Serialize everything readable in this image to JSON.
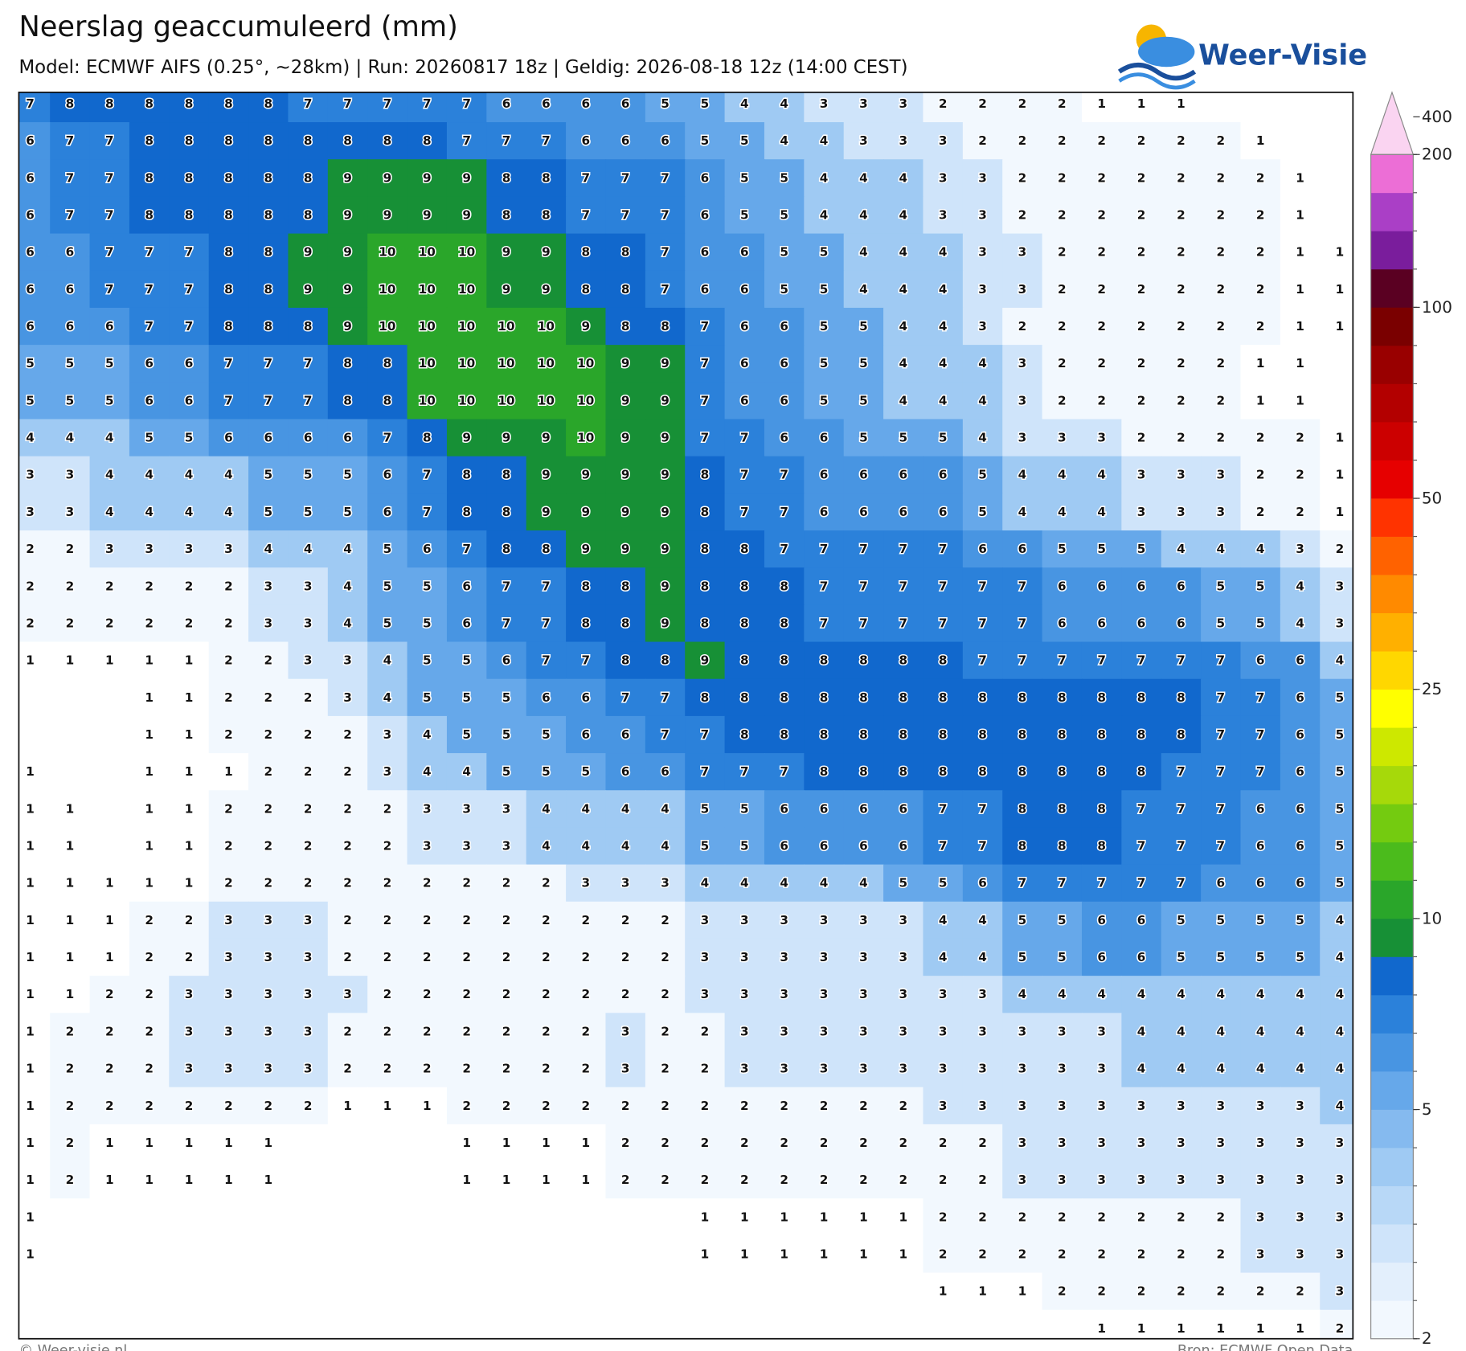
{
  "header": {
    "title": "Neerslag geaccumuleerd (mm)",
    "subtitle": "Model: ECMWF AIFS (0.25°, ~28km)  |  Run: 20260817 18z  |  Geldig: 2026-08-18 12z (14:00 CEST)"
  },
  "logo": {
    "text": "Weer-Visie"
  },
  "map": {
    "grid": [
      [
        7,
        8,
        8,
        8,
        8,
        8,
        8,
        7,
        7,
        7,
        7,
        7,
        6,
        6,
        6,
        6,
        5,
        5,
        4,
        4,
        3,
        3,
        3,
        2,
        2,
        2,
        2,
        1,
        1,
        1,
        null,
        null,
        null,
        null
      ],
      [
        6,
        7,
        7,
        8,
        8,
        8,
        8,
        8,
        8,
        8,
        8,
        7,
        7,
        7,
        6,
        6,
        6,
        5,
        5,
        4,
        4,
        3,
        3,
        3,
        2,
        2,
        2,
        2,
        2,
        2,
        2,
        1,
        null,
        null
      ],
      [
        6,
        7,
        7,
        8,
        8,
        8,
        8,
        8,
        9,
        9,
        9,
        9,
        8,
        8,
        7,
        7,
        7,
        6,
        5,
        5,
        4,
        4,
        4,
        3,
        3,
        2,
        2,
        2,
        2,
        2,
        2,
        2,
        1,
        null
      ],
      [
        6,
        7,
        7,
        8,
        8,
        8,
        8,
        8,
        9,
        9,
        9,
        9,
        8,
        8,
        7,
        7,
        7,
        6,
        5,
        5,
        4,
        4,
        4,
        3,
        3,
        2,
        2,
        2,
        2,
        2,
        2,
        2,
        1,
        null
      ],
      [
        6,
        6,
        7,
        7,
        7,
        8,
        8,
        9,
        9,
        10,
        10,
        10,
        9,
        9,
        8,
        8,
        7,
        6,
        6,
        5,
        5,
        4,
        4,
        4,
        3,
        3,
        2,
        2,
        2,
        2,
        2,
        2,
        1,
        1
      ],
      [
        6,
        6,
        7,
        7,
        7,
        8,
        8,
        9,
        9,
        10,
        10,
        10,
        9,
        9,
        8,
        8,
        7,
        6,
        6,
        5,
        5,
        4,
        4,
        4,
        3,
        3,
        2,
        2,
        2,
        2,
        2,
        2,
        1,
        1
      ],
      [
        6,
        6,
        6,
        7,
        7,
        8,
        8,
        8,
        9,
        10,
        10,
        10,
        10,
        10,
        9,
        8,
        8,
        7,
        6,
        6,
        5,
        5,
        4,
        4,
        3,
        2,
        2,
        2,
        2,
        2,
        2,
        2,
        1,
        1
      ],
      [
        5,
        5,
        5,
        6,
        6,
        7,
        7,
        7,
        8,
        8,
        10,
        10,
        10,
        10,
        10,
        9,
        9,
        7,
        6,
        6,
        5,
        5,
        4,
        4,
        4,
        3,
        2,
        2,
        2,
        2,
        2,
        1,
        1,
        null
      ],
      [
        5,
        5,
        5,
        6,
        6,
        7,
        7,
        7,
        8,
        8,
        10,
        10,
        10,
        10,
        10,
        9,
        9,
        7,
        6,
        6,
        5,
        5,
        4,
        4,
        4,
        3,
        2,
        2,
        2,
        2,
        2,
        1,
        1,
        null
      ],
      [
        4,
        4,
        4,
        5,
        5,
        6,
        6,
        6,
        6,
        7,
        8,
        9,
        9,
        9,
        10,
        9,
        9,
        7,
        7,
        6,
        6,
        5,
        5,
        5,
        4,
        3,
        3,
        3,
        2,
        2,
        2,
        2,
        2,
        1
      ],
      [
        3,
        3,
        4,
        4,
        4,
        4,
        5,
        5,
        5,
        6,
        7,
        8,
        8,
        9,
        9,
        9,
        9,
        8,
        7,
        7,
        6,
        6,
        6,
        6,
        5,
        4,
        4,
        4,
        3,
        3,
        3,
        2,
        2,
        1
      ],
      [
        3,
        3,
        4,
        4,
        4,
        4,
        5,
        5,
        5,
        6,
        7,
        8,
        8,
        9,
        9,
        9,
        9,
        8,
        7,
        7,
        6,
        6,
        6,
        6,
        5,
        4,
        4,
        4,
        3,
        3,
        3,
        2,
        2,
        1
      ],
      [
        2,
        2,
        3,
        3,
        3,
        3,
        4,
        4,
        4,
        5,
        6,
        7,
        8,
        8,
        9,
        9,
        9,
        8,
        8,
        7,
        7,
        7,
        7,
        7,
        6,
        6,
        5,
        5,
        5,
        4,
        4,
        4,
        3,
        2
      ],
      [
        2,
        2,
        2,
        2,
        2,
        2,
        3,
        3,
        4,
        5,
        5,
        6,
        7,
        7,
        8,
        8,
        9,
        8,
        8,
        8,
        7,
        7,
        7,
        7,
        7,
        7,
        6,
        6,
        6,
        6,
        5,
        5,
        4,
        3
      ],
      [
        2,
        2,
        2,
        2,
        2,
        2,
        3,
        3,
        4,
        5,
        5,
        6,
        7,
        7,
        8,
        8,
        9,
        8,
        8,
        8,
        7,
        7,
        7,
        7,
        7,
        7,
        6,
        6,
        6,
        6,
        5,
        5,
        4,
        3
      ],
      [
        1,
        1,
        1,
        1,
        1,
        2,
        2,
        3,
        3,
        4,
        5,
        5,
        6,
        7,
        7,
        8,
        8,
        9,
        8,
        8,
        8,
        8,
        8,
        8,
        7,
        7,
        7,
        7,
        7,
        7,
        7,
        6,
        6,
        4
      ],
      [
        null,
        null,
        null,
        1,
        1,
        2,
        2,
        2,
        3,
        4,
        5,
        5,
        5,
        6,
        6,
        7,
        7,
        8,
        8,
        8,
        8,
        8,
        8,
        8,
        8,
        8,
        8,
        8,
        8,
        8,
        7,
        7,
        6,
        5
      ],
      [
        null,
        null,
        null,
        1,
        1,
        2,
        2,
        2,
        2,
        3,
        4,
        5,
        5,
        5,
        6,
        6,
        7,
        7,
        8,
        8,
        8,
        8,
        8,
        8,
        8,
        8,
        8,
        8,
        8,
        8,
        7,
        7,
        6,
        5
      ],
      [
        1,
        null,
        null,
        1,
        1,
        1,
        2,
        2,
        2,
        3,
        4,
        4,
        5,
        5,
        5,
        6,
        6,
        7,
        7,
        7,
        8,
        8,
        8,
        8,
        8,
        8,
        8,
        8,
        8,
        7,
        7,
        7,
        6,
        5
      ],
      [
        1,
        1,
        null,
        1,
        1,
        2,
        2,
        2,
        2,
        2,
        3,
        3,
        3,
        4,
        4,
        4,
        4,
        5,
        5,
        6,
        6,
        6,
        6,
        7,
        7,
        8,
        8,
        8,
        7,
        7,
        7,
        6,
        6,
        5
      ],
      [
        1,
        1,
        null,
        1,
        1,
        2,
        2,
        2,
        2,
        2,
        3,
        3,
        3,
        4,
        4,
        4,
        4,
        5,
        5,
        6,
        6,
        6,
        6,
        7,
        7,
        8,
        8,
        8,
        7,
        7,
        7,
        6,
        6,
        5
      ],
      [
        1,
        1,
        1,
        1,
        1,
        2,
        2,
        2,
        2,
        2,
        2,
        2,
        2,
        2,
        3,
        3,
        3,
        4,
        4,
        4,
        4,
        4,
        5,
        5,
        6,
        7,
        7,
        7,
        7,
        7,
        6,
        6,
        6,
        5
      ],
      [
        1,
        1,
        1,
        2,
        2,
        3,
        3,
        3,
        2,
        2,
        2,
        2,
        2,
        2,
        2,
        2,
        2,
        3,
        3,
        3,
        3,
        3,
        3,
        4,
        4,
        5,
        5,
        6,
        6,
        5,
        5,
        5,
        5,
        4
      ],
      [
        1,
        1,
        1,
        2,
        2,
        3,
        3,
        3,
        2,
        2,
        2,
        2,
        2,
        2,
        2,
        2,
        2,
        3,
        3,
        3,
        3,
        3,
        3,
        4,
        4,
        5,
        5,
        6,
        6,
        5,
        5,
        5,
        5,
        4
      ],
      [
        1,
        1,
        2,
        2,
        3,
        3,
        3,
        3,
        3,
        2,
        2,
        2,
        2,
        2,
        2,
        2,
        2,
        3,
        3,
        3,
        3,
        3,
        3,
        3,
        3,
        4,
        4,
        4,
        4,
        4,
        4,
        4,
        4,
        4
      ],
      [
        1,
        2,
        2,
        2,
        3,
        3,
        3,
        3,
        2,
        2,
        2,
        2,
        2,
        2,
        2,
        3,
        2,
        2,
        3,
        3,
        3,
        3,
        3,
        3,
        3,
        3,
        3,
        3,
        4,
        4,
        4,
        4,
        4,
        4
      ],
      [
        1,
        2,
        2,
        2,
        3,
        3,
        3,
        3,
        2,
        2,
        2,
        2,
        2,
        2,
        2,
        3,
        2,
        2,
        3,
        3,
        3,
        3,
        3,
        3,
        3,
        3,
        3,
        3,
        4,
        4,
        4,
        4,
        4,
        4
      ],
      [
        1,
        2,
        2,
        2,
        2,
        2,
        2,
        2,
        1,
        1,
        1,
        2,
        2,
        2,
        2,
        2,
        2,
        2,
        2,
        2,
        2,
        2,
        2,
        3,
        3,
        3,
        3,
        3,
        3,
        3,
        3,
        3,
        3,
        4
      ],
      [
        1,
        2,
        1,
        1,
        1,
        1,
        1,
        null,
        null,
        null,
        null,
        1,
        1,
        1,
        1,
        2,
        2,
        2,
        2,
        2,
        2,
        2,
        2,
        2,
        2,
        3,
        3,
        3,
        3,
        3,
        3,
        3,
        3,
        3
      ],
      [
        1,
        2,
        1,
        1,
        1,
        1,
        1,
        null,
        null,
        null,
        null,
        1,
        1,
        1,
        1,
        2,
        2,
        2,
        2,
        2,
        2,
        2,
        2,
        2,
        2,
        3,
        3,
        3,
        3,
        3,
        3,
        3,
        3,
        3
      ],
      [
        1,
        null,
        null,
        null,
        null,
        null,
        null,
        null,
        null,
        null,
        null,
        null,
        null,
        null,
        null,
        null,
        null,
        1,
        1,
        1,
        1,
        1,
        1,
        2,
        2,
        2,
        2,
        2,
        2,
        2,
        2,
        3,
        3,
        3
      ],
      [
        1,
        null,
        null,
        null,
        null,
        null,
        null,
        null,
        null,
        null,
        null,
        null,
        null,
        null,
        null,
        null,
        null,
        1,
        1,
        1,
        1,
        1,
        1,
        2,
        2,
        2,
        2,
        2,
        2,
        2,
        2,
        3,
        3,
        3
      ],
      [
        null,
        null,
        null,
        null,
        null,
        null,
        null,
        null,
        null,
        null,
        null,
        null,
        null,
        null,
        null,
        null,
        null,
        null,
        null,
        null,
        null,
        null,
        null,
        1,
        1,
        1,
        2,
        2,
        2,
        2,
        2,
        2,
        2,
        3
      ],
      [
        null,
        null,
        null,
        null,
        null,
        null,
        null,
        null,
        null,
        null,
        null,
        null,
        null,
        null,
        null,
        null,
        null,
        null,
        null,
        null,
        null,
        null,
        null,
        null,
        null,
        null,
        null,
        1,
        1,
        1,
        1,
        1,
        1,
        2
      ]
    ]
  },
  "colorbar": {
    "levels": [
      2,
      2.5,
      3,
      3.5,
      4,
      4.5,
      5,
      6,
      7,
      8,
      9,
      10,
      12.5,
      15,
      17.5,
      20,
      22.5,
      25,
      30,
      35,
      40,
      45,
      50,
      60,
      70,
      80,
      90,
      100,
      125,
      150,
      175,
      200
    ],
    "colors": [
      "#f2f8fe",
      "#e3effc",
      "#cfe4fa",
      "#b8d8f7",
      "#9fcaf3",
      "#85baef",
      "#66a8ea",
      "#4895e2",
      "#2b81da",
      "#1168cd",
      "#179036",
      "#2aa62a",
      "#4bbb1c",
      "#74cb10",
      "#a6d90a",
      "#cde800",
      "#ffff00",
      "#ffd700",
      "#ffb000",
      "#ff8a00",
      "#ff6200",
      "#ff3300",
      "#e60000",
      "#cc0000",
      "#b30000",
      "#990000",
      "#7a0000",
      "#5a0022",
      "#7a1d9c",
      "#aa3fc6",
      "#ec6ed6"
    ],
    "extend_color": "#fad4f1",
    "ticks": [
      2,
      5,
      10,
      25,
      50,
      100,
      200,
      400
    ]
  },
  "footer": {
    "left": "© Weer-visie.nl",
    "right": "Bron: ECMWF Open Data"
  }
}
